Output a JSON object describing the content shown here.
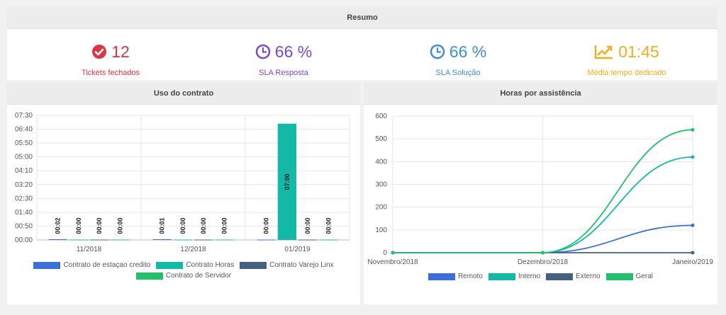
{
  "resumo": {
    "title": "Resumo",
    "kpis": [
      {
        "icon": "check-circle-icon",
        "value": "12",
        "label": "Tickets fechados",
        "color": "#dc3545"
      },
      {
        "icon": "clock-icon",
        "value": "66 %",
        "label": "SLA Resposta",
        "color": "#7b48c8"
      },
      {
        "icon": "clock-icon",
        "value": "66 %",
        "label": "SLA Solução",
        "color": "#3a8fd3"
      },
      {
        "icon": "line-chart-icon",
        "value": "01:45",
        "label": "Média tempo dedicado",
        "color": "#f0ad1e"
      }
    ]
  },
  "uso": {
    "title": "Uso do contrato"
  },
  "horas": {
    "title": "Horas por assistência"
  },
  "chart_data": [
    {
      "type": "bar",
      "title": "",
      "categories": [
        "11/2018",
        "12/2018",
        "01/2019"
      ],
      "y_ticks": [
        "00:00",
        "00:50",
        "01:40",
        "02:30",
        "03:20",
        "04:10",
        "05:00",
        "05:50",
        "06:40",
        "07:30"
      ],
      "ylim": [
        0,
        450
      ],
      "grid": true,
      "legend_position": "bottom",
      "series": [
        {
          "name": "Contrato de estaçao credito",
          "color": "#3b6fd4",
          "values": [
            2,
            1,
            0
          ],
          "labels": [
            "00:02",
            "00:01",
            "00:00"
          ]
        },
        {
          "name": "Contrato Horas",
          "color": "#14b8a6",
          "values": [
            0,
            0,
            420
          ],
          "labels": [
            "00:00",
            "00:00",
            "07:00"
          ]
        },
        {
          "name": "Contrato Varejo Linx",
          "color": "#46607f",
          "values": [
            0,
            0,
            0
          ],
          "labels": [
            "00:00",
            "00:00",
            "00:00"
          ]
        },
        {
          "name": "Contrato de Servidor",
          "color": "#22c06b",
          "values": [
            0,
            0,
            0
          ],
          "labels": [
            "00:00",
            "00:00",
            "00:00"
          ]
        }
      ]
    },
    {
      "type": "line",
      "title": "",
      "categories": [
        "Novembro/2018",
        "Dezembro/2018",
        "Janeiro/2019"
      ],
      "y_ticks": [
        0,
        100,
        200,
        300,
        400,
        500,
        600
      ],
      "ylim": [
        0,
        600
      ],
      "grid": true,
      "legend_position": "bottom",
      "series": [
        {
          "name": "Remoto",
          "color": "#3b6fd4",
          "values": [
            0,
            0,
            120
          ]
        },
        {
          "name": "Interno",
          "color": "#14b8a6",
          "values": [
            0,
            0,
            420
          ]
        },
        {
          "name": "Externo",
          "color": "#46607f",
          "values": [
            0,
            0,
            0
          ]
        },
        {
          "name": "Geral",
          "color": "#22c06b",
          "values": [
            0,
            0,
            540
          ]
        }
      ]
    }
  ]
}
